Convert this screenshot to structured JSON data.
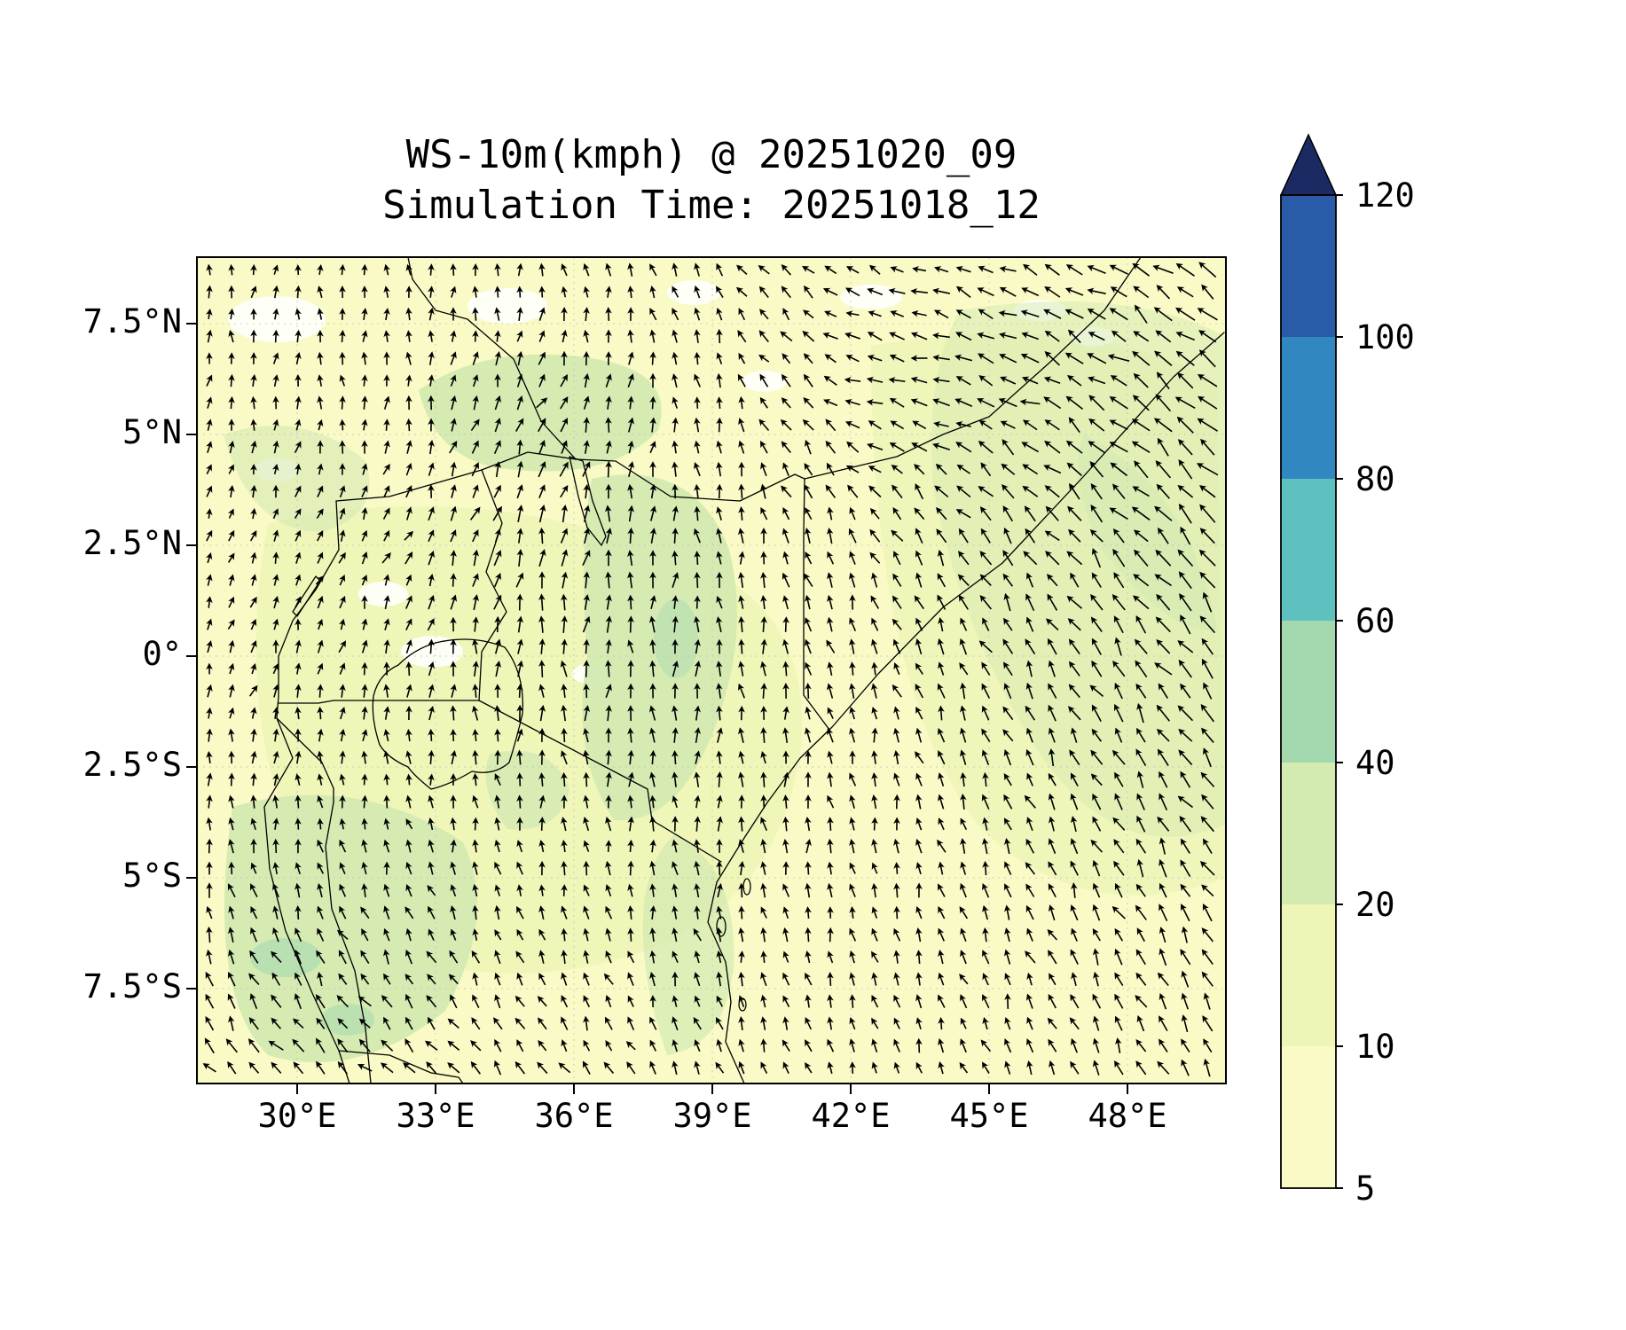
{
  "figure": {
    "title": "WS-10m(kmph) @ 20251020_09",
    "subtitle": "Simulation Time: 20251018_12"
  },
  "chart_data": {
    "type": "heatmap",
    "variant": "filled contour wind-speed map with quiver (wind arrow) overlay",
    "title": "WS-10m(kmph) @ 20251020_09",
    "subtitle": "Simulation Time: 20251018_12",
    "valid_time": "20251020_09",
    "simulation_time": "20251018_12",
    "units": "kmph",
    "xlabel": "",
    "ylabel": "",
    "x_ticks": [
      "30°E",
      "33°E",
      "36°E",
      "39°E",
      "42°E",
      "45°E",
      "48°E"
    ],
    "y_ticks": [
      "7.5°N",
      "5°N",
      "2.5°N",
      "0°",
      "2.5°S",
      "5°S",
      "7.5°S"
    ],
    "xlim_deg_east": [
      27.8,
      50.1
    ],
    "ylim_deg_north": [
      -9.6,
      9.0
    ],
    "grid": true,
    "colorbar": {
      "orientation": "vertical",
      "extend": "max",
      "levels": [
        5,
        10,
        20,
        40,
        60,
        80,
        100,
        120
      ],
      "tick_labels_top_to_bottom": [
        "120",
        "100",
        "80",
        "60",
        "40",
        "20",
        "10",
        "5"
      ],
      "colors": [
        "#f9fac5",
        "#eef5b6",
        "#d3eab1",
        "#a3d7ae",
        "#5fc0c0",
        "#3188c1",
        "#295ba8"
      ],
      "over_color": "#1b2a63"
    },
    "wind_field_estimate": {
      "note": "Coarse 7x7 values read off the plot; rows north to south at the latitude ticks, columns west to east at the longitude ticks. Directions are math-convention degrees CCW from east (90 = arrow pointing north).",
      "lat_rows": [
        7.5,
        5,
        2.5,
        0,
        -2.5,
        -5,
        -7.5
      ],
      "lon_cols": [
        30,
        33,
        36,
        39,
        42,
        45,
        48
      ],
      "direction_deg": [
        [
          85,
          90,
          100,
          120,
          160,
          155,
          140
        ],
        [
          80,
          95,
          60,
          100,
          170,
          150,
          135
        ],
        [
          75,
          60,
          75,
          95,
          120,
          130,
          135
        ],
        [
          70,
          80,
          90,
          90,
          110,
          120,
          130
        ],
        [
          90,
          100,
          95,
          90,
          100,
          115,
          125
        ],
        [
          110,
          120,
          110,
          100,
          105,
          115,
          120
        ],
        [
          130,
          140,
          130,
          115,
          110,
          115,
          120
        ]
      ],
      "speed_kmph": [
        [
          12,
          10,
          12,
          15,
          20,
          28,
          35
        ],
        [
          12,
          14,
          18,
          15,
          22,
          30,
          40
        ],
        [
          10,
          12,
          25,
          18,
          20,
          28,
          38
        ],
        [
          12,
          15,
          22,
          20,
          18,
          25,
          35
        ],
        [
          15,
          12,
          15,
          18,
          16,
          22,
          30
        ],
        [
          20,
          18,
          15,
          16,
          15,
          20,
          28
        ],
        [
          25,
          22,
          18,
          15,
          15,
          18,
          25
        ]
      ]
    }
  }
}
